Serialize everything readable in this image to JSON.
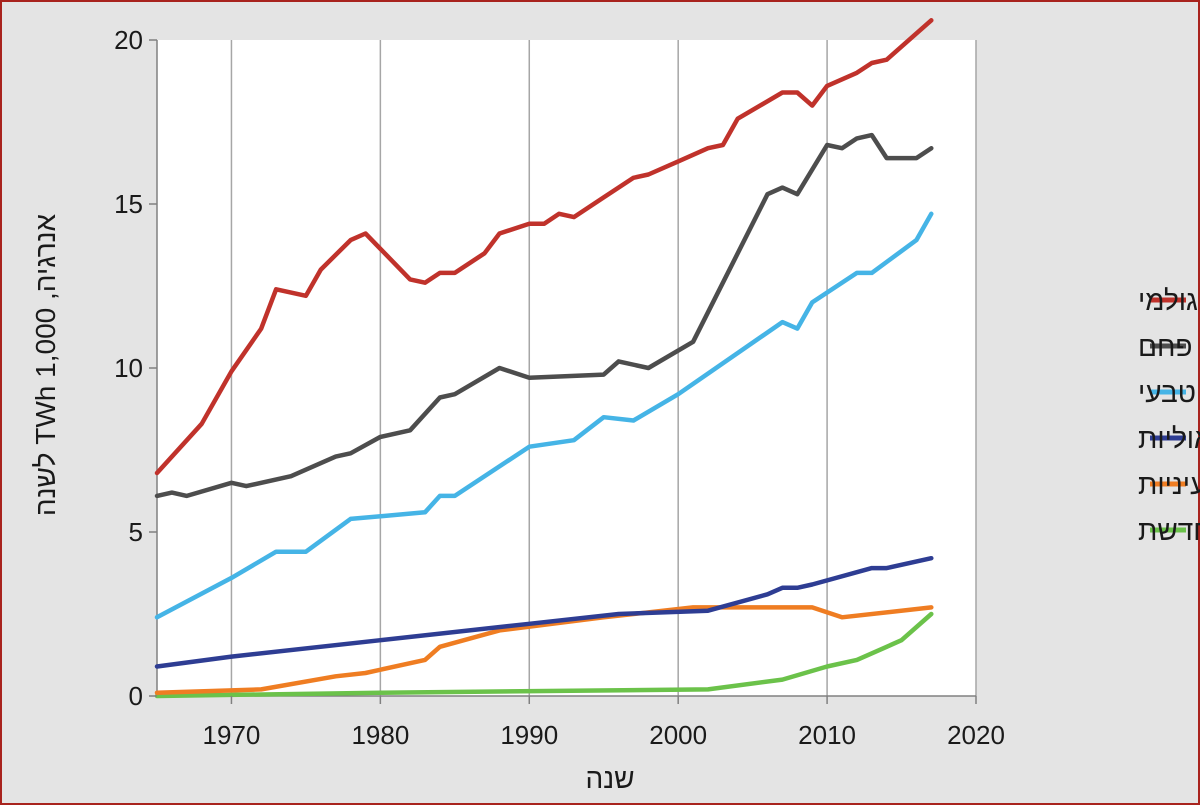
{
  "chart_data": {
    "type": "line",
    "xlabel": "שנה",
    "ylabel": "אנרגיה, 1,000 TWh לשנה",
    "xlim": [
      1965,
      2020
    ],
    "ylim": [
      0,
      20
    ],
    "x_ticks": [
      1970,
      1980,
      1990,
      2000,
      2010,
      2020
    ],
    "y_ticks": [
      0,
      5,
      10,
      15,
      20
    ],
    "grid": "vertical",
    "legend_position": "right",
    "series": [
      {
        "name": "נפט גולמי",
        "color": "#c0322b",
        "points": [
          [
            1965,
            6.8
          ],
          [
            1968,
            8.3
          ],
          [
            1970,
            9.9
          ],
          [
            1972,
            11.2
          ],
          [
            1973,
            12.4
          ],
          [
            1975,
            12.2
          ],
          [
            1976,
            13.0
          ],
          [
            1978,
            13.9
          ],
          [
            1979,
            14.1
          ],
          [
            1982,
            12.7
          ],
          [
            1983,
            12.6
          ],
          [
            1984,
            12.9
          ],
          [
            1985,
            12.9
          ],
          [
            1987,
            13.5
          ],
          [
            1988,
            14.1
          ],
          [
            1990,
            14.4
          ],
          [
            1991,
            14.4
          ],
          [
            1992,
            14.7
          ],
          [
            1993,
            14.6
          ],
          [
            1995,
            15.2
          ],
          [
            1997,
            15.8
          ],
          [
            1998,
            15.9
          ],
          [
            2000,
            16.3
          ],
          [
            2002,
            16.7
          ],
          [
            2003,
            16.8
          ],
          [
            2004,
            17.6
          ],
          [
            2007,
            18.4
          ],
          [
            2008,
            18.4
          ],
          [
            2009,
            18.0
          ],
          [
            2010,
            18.6
          ],
          [
            2012,
            19.0
          ],
          [
            2013,
            19.3
          ],
          [
            2014,
            19.4
          ],
          [
            2016,
            20.2
          ],
          [
            2017,
            20.6
          ]
        ]
      },
      {
        "name": "פחם",
        "color": "#4d4d4d",
        "points": [
          [
            1965,
            6.1
          ],
          [
            1966,
            6.2
          ],
          [
            1967,
            6.1
          ],
          [
            1970,
            6.5
          ],
          [
            1971,
            6.4
          ],
          [
            1974,
            6.7
          ],
          [
            1977,
            7.3
          ],
          [
            1978,
            7.4
          ],
          [
            1980,
            7.9
          ],
          [
            1982,
            8.1
          ],
          [
            1984,
            9.1
          ],
          [
            1985,
            9.2
          ],
          [
            1988,
            10.0
          ],
          [
            1990,
            9.7
          ],
          [
            1995,
            9.8
          ],
          [
            1996,
            10.2
          ],
          [
            1998,
            10.0
          ],
          [
            2001,
            10.8
          ],
          [
            2006,
            15.3
          ],
          [
            2007,
            15.5
          ],
          [
            2008,
            15.3
          ],
          [
            2010,
            16.8
          ],
          [
            2011,
            16.7
          ],
          [
            2012,
            17.0
          ],
          [
            2013,
            17.1
          ],
          [
            2014,
            16.4
          ],
          [
            2016,
            16.4
          ],
          [
            2017,
            16.7
          ]
        ]
      },
      {
        "name": "גז טבעי",
        "color": "#45b4e6",
        "points": [
          [
            1965,
            2.4
          ],
          [
            1970,
            3.6
          ],
          [
            1973,
            4.4
          ],
          [
            1975,
            4.4
          ],
          [
            1978,
            5.4
          ],
          [
            1983,
            5.6
          ],
          [
            1984,
            6.1
          ],
          [
            1985,
            6.1
          ],
          [
            1990,
            7.6
          ],
          [
            1993,
            7.8
          ],
          [
            1995,
            8.5
          ],
          [
            1997,
            8.4
          ],
          [
            2000,
            9.2
          ],
          [
            2007,
            11.4
          ],
          [
            2008,
            11.2
          ],
          [
            2009,
            12.0
          ],
          [
            2012,
            12.9
          ],
          [
            2013,
            12.9
          ],
          [
            2016,
            13.9
          ],
          [
            2017,
            14.7
          ]
        ]
      },
      {
        "name": "תחנות כוח הדראוליות",
        "color": "#2e3d93",
        "points": [
          [
            1965,
            0.9
          ],
          [
            1970,
            1.2
          ],
          [
            1980,
            1.7
          ],
          [
            1990,
            2.2
          ],
          [
            1996,
            2.5
          ],
          [
            2002,
            2.6
          ],
          [
            2006,
            3.1
          ],
          [
            2007,
            3.3
          ],
          [
            2008,
            3.3
          ],
          [
            2009,
            3.4
          ],
          [
            2013,
            3.9
          ],
          [
            2014,
            3.9
          ],
          [
            2017,
            4.2
          ]
        ]
      },
      {
        "name": "תחנות כוח גרעיניות",
        "color": "#ef7d22",
        "points": [
          [
            1965,
            0.1
          ],
          [
            1972,
            0.2
          ],
          [
            1977,
            0.6
          ],
          [
            1979,
            0.7
          ],
          [
            1983,
            1.1
          ],
          [
            1984,
            1.5
          ],
          [
            1988,
            2.0
          ],
          [
            1995,
            2.4
          ],
          [
            2001,
            2.7
          ],
          [
            2004,
            2.7
          ],
          [
            2009,
            2.7
          ],
          [
            2011,
            2.4
          ],
          [
            2017,
            2.7
          ]
        ]
      },
      {
        "name": "אחר – אנרגיה מתחדשת",
        "color": "#6bc24a",
        "points": [
          [
            1965,
            0.0
          ],
          [
            1980,
            0.1
          ],
          [
            2002,
            0.2
          ],
          [
            2007,
            0.5
          ],
          [
            2010,
            0.9
          ],
          [
            2012,
            1.1
          ],
          [
            2014,
            1.5
          ],
          [
            2015,
            1.7
          ],
          [
            2017,
            2.5
          ]
        ]
      }
    ]
  }
}
